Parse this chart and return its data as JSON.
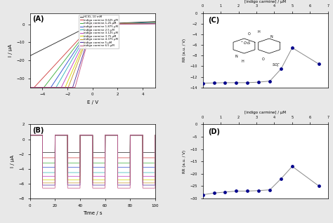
{
  "panel_A": {
    "label": "(A)",
    "xlabel": "E / V",
    "ylabel": "I / μA",
    "xlim": [
      -5,
      5
    ],
    "ylim": [
      -35,
      6
    ],
    "lines": [
      {
        "label": "HClO₄ 10 mM",
        "color": "#2a2a2a"
      },
      {
        "label": "indigo carmine 0.625 μM",
        "color": "#d04040"
      },
      {
        "label": "indigo carmine 1.25 μM",
        "color": "#40b040"
      },
      {
        "label": "indigo carmine 1.875 μM",
        "color": "#3050d0"
      },
      {
        "label": "indigo carmine 2.5 μM",
        "color": "#30b8b8"
      },
      {
        "label": "indigo carmine 3.125 μM",
        "color": "#c040c0"
      },
      {
        "label": "indigo carmine 3.75 μM",
        "color": "#d8d800"
      },
      {
        "label": "indigo carmine 4.375 μM",
        "color": "#c89828"
      },
      {
        "label": "indigo carmine 5 μM",
        "color": "#5030a0"
      },
      {
        "label": "indigo carmine 6.5 μM",
        "color": "#c85888"
      }
    ],
    "slopes_neg": [
      3.5,
      7.5,
      9.0,
      10.5,
      12.0,
      14.0,
      16.0,
      18.0,
      22.0,
      25.0
    ],
    "slopes_pos": [
      0.3,
      0.2,
      0.2,
      0.15,
      0.15,
      0.1,
      0.1,
      0.08,
      0.05,
      0.04
    ]
  },
  "panel_B": {
    "label": "(B)",
    "xlabel": "Time / s",
    "ylabel": "I / μA",
    "xlim": [
      0,
      100
    ],
    "ylim": [
      -8,
      2
    ],
    "on_level": 0.55,
    "off_levels": [
      -1.8,
      -2.5,
      -3.2,
      -3.8,
      -4.5,
      -5.0,
      -5.5,
      -5.9,
      -6.2,
      -6.6
    ],
    "colors": [
      "#2a2a2a",
      "#d04040",
      "#40b040",
      "#3050d0",
      "#30b8b8",
      "#c040c0",
      "#d8d800",
      "#c89828",
      "#5030a0",
      "#c85888"
    ],
    "pulse_on_duration": 5,
    "pulse_period": 20,
    "n_pulses": 5,
    "t_start": 2
  },
  "panel_C": {
    "label": "(C)",
    "xlabel": "[indigo carmine] / μM",
    "ylabel": "RR (a.u. / V)",
    "xlim": [
      0,
      7
    ],
    "ylim": [
      -14,
      0
    ],
    "x_data": [
      0,
      0.625,
      1.25,
      1.875,
      2.5,
      3.125,
      3.75,
      4.375,
      5.0,
      6.5
    ],
    "y_data": [
      -13.2,
      -13.15,
      -13.1,
      -13.1,
      -13.1,
      -13.0,
      -12.8,
      -10.5,
      -6.5,
      -9.6
    ],
    "yticks": [
      -14,
      -12,
      -10,
      -8,
      -6,
      -4,
      -2,
      0
    ],
    "xticks": [
      0,
      1,
      2,
      3,
      4,
      5,
      6,
      7
    ]
  },
  "panel_D": {
    "label": "(D)",
    "xlabel": "[indigo carmine] / μM",
    "ylabel": "RR (a.u. / V)",
    "xlim": [
      0,
      7
    ],
    "ylim": [
      -30,
      0
    ],
    "x_data": [
      0,
      0.625,
      1.25,
      1.875,
      2.5,
      3.125,
      3.75,
      4.375,
      5.0,
      6.5
    ],
    "y_data": [
      -28.5,
      -27.8,
      -27.4,
      -27.0,
      -27.0,
      -26.8,
      -26.5,
      -22.0,
      -17.0,
      -25.0
    ],
    "yticks": [
      -30,
      -25,
      -20,
      -15,
      -10,
      -5,
      0
    ],
    "xticks": [
      0,
      1,
      2,
      3,
      4,
      5,
      6,
      7
    ]
  },
  "fig_bg": "#e8e8e8"
}
